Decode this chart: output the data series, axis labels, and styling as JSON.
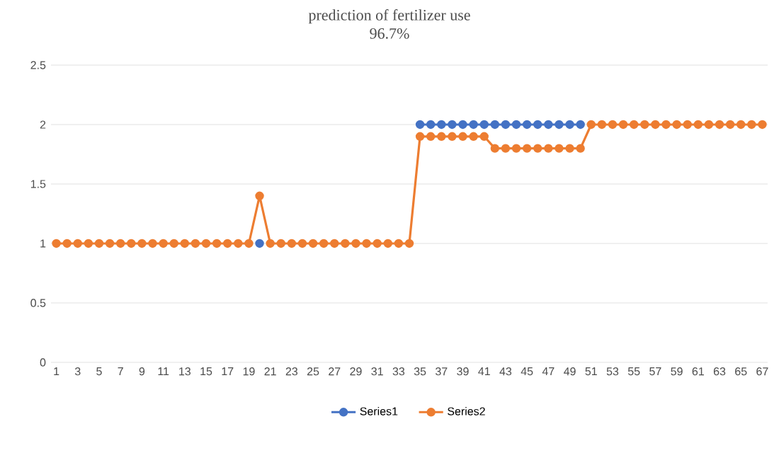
{
  "chart_data": {
    "type": "line",
    "title": "prediction of fertilizer use",
    "subtitle": "96.7%",
    "categories": [
      "1",
      null,
      "3",
      null,
      "5",
      null,
      "7",
      null,
      "9",
      null,
      "11",
      null,
      "13",
      null,
      "15",
      null,
      "17",
      null,
      "19",
      null,
      "21",
      null,
      "23",
      null,
      "25",
      null,
      "27",
      null,
      "29",
      null,
      "31",
      null,
      "33",
      null,
      "35",
      null,
      "37",
      null,
      "39",
      null,
      "41",
      null,
      "43",
      null,
      "45",
      null,
      "47",
      null,
      "49",
      null,
      "51",
      null,
      "53",
      null,
      "55",
      null,
      "57",
      null,
      "59",
      null,
      "61",
      null,
      "63",
      null,
      "65",
      null,
      "67"
    ],
    "series": [
      {
        "name": "Series1",
        "color": "#4472c4",
        "values": [
          null,
          null,
          null,
          null,
          null,
          null,
          null,
          null,
          null,
          null,
          null,
          null,
          null,
          null,
          null,
          null,
          null,
          null,
          null,
          1,
          null,
          null,
          null,
          null,
          null,
          null,
          null,
          null,
          null,
          null,
          null,
          null,
          null,
          null,
          2,
          2,
          2,
          2,
          2,
          2,
          2,
          2,
          2,
          2,
          2,
          2,
          2,
          2,
          2,
          2,
          null,
          null,
          null,
          null,
          null,
          null,
          null,
          null,
          null,
          null,
          null,
          null,
          null,
          null,
          null,
          null,
          null
        ]
      },
      {
        "name": "Series2",
        "color": "#ed7d31",
        "values": [
          1,
          1,
          1,
          1,
          1,
          1,
          1,
          1,
          1,
          1,
          1,
          1,
          1,
          1,
          1,
          1,
          1,
          1,
          1,
          1.4,
          1,
          1,
          1,
          1,
          1,
          1,
          1,
          1,
          1,
          1,
          1,
          1,
          1,
          1,
          1.9,
          1.9,
          1.9,
          1.9,
          1.9,
          1.9,
          1.9,
          1.8,
          1.8,
          1.8,
          1.8,
          1.8,
          1.8,
          1.8,
          1.8,
          1.8,
          2,
          2,
          2,
          2,
          2,
          2,
          2,
          2,
          2,
          2,
          2,
          2,
          2,
          2,
          2,
          2,
          2
        ]
      }
    ],
    "ylim": [
      0,
      2.5
    ],
    "yticks": [
      0,
      0.5,
      1,
      1.5,
      2,
      2.5
    ],
    "grid": "y",
    "legend": "bottom",
    "marker": "circle",
    "line_style": "solid"
  }
}
